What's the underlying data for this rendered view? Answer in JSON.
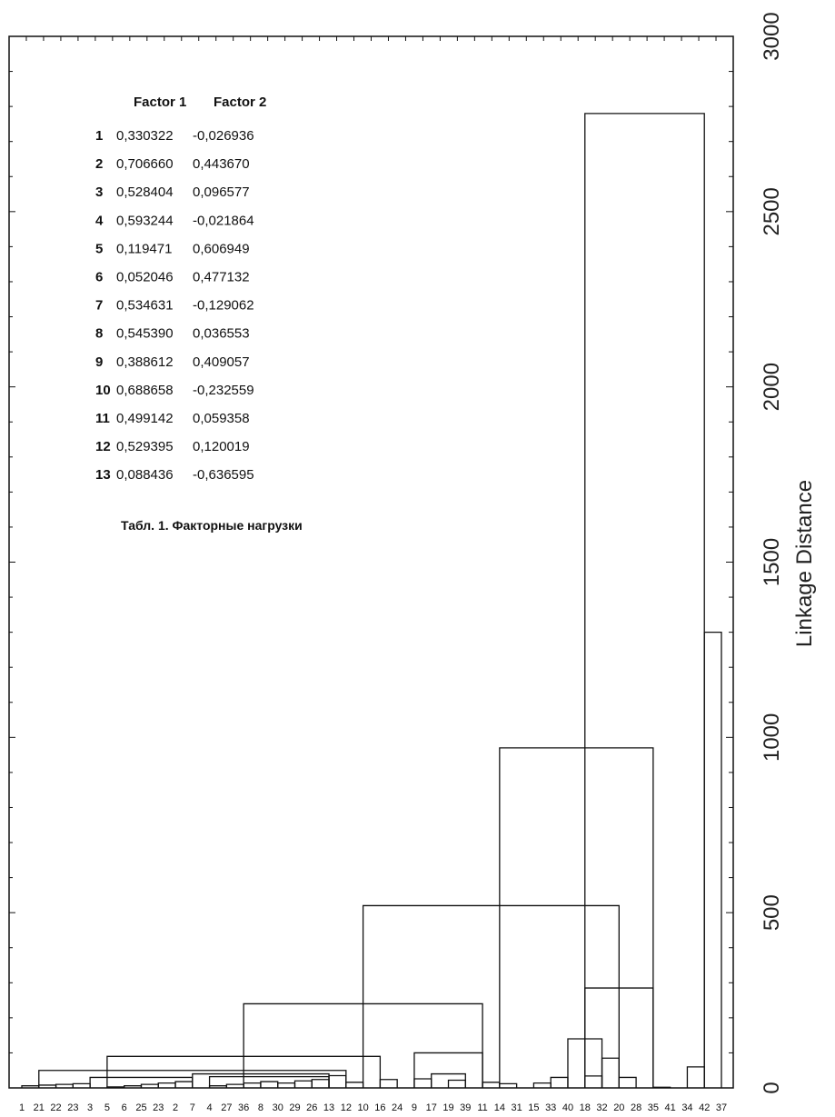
{
  "chart_data": {
    "type": "dendrogram",
    "ylabel": "Linkage Distance",
    "ylim": [
      0,
      3000
    ],
    "yticks": [
      0,
      500,
      1000,
      1500,
      2000,
      2500,
      3000
    ],
    "leaves": [
      "1",
      "21",
      "22",
      "23",
      "3",
      "5",
      "6",
      "25",
      "23",
      "2",
      "7",
      "4",
      "27",
      "36",
      "8",
      "30",
      "29",
      "26",
      "13",
      "12",
      "10",
      "16",
      "24",
      "9",
      "17",
      "19",
      "39",
      "11",
      "14",
      "31",
      "15",
      "33",
      "40",
      "18",
      "32",
      "20",
      "28",
      "35",
      "41",
      "34",
      "42",
      "37"
    ],
    "links": [
      {
        "a": 0,
        "b": 1,
        "h": 6
      },
      {
        "a": 1,
        "b": 2,
        "h": 8
      },
      {
        "a": 2,
        "b": 3,
        "h": 10
      },
      {
        "a": 3,
        "b": 4,
        "h": 12
      },
      {
        "a": 5,
        "b": 6,
        "h": 3
      },
      {
        "a": 6,
        "b": 7,
        "h": 6
      },
      {
        "a": 7,
        "b": 8,
        "h": 10
      },
      {
        "a": 8,
        "b": 9,
        "h": 14
      },
      {
        "a": 9,
        "b": 10,
        "h": 18
      },
      {
        "a": 11,
        "b": 12,
        "h": 6
      },
      {
        "a": 12,
        "b": 13,
        "h": 10
      },
      {
        "a": 13,
        "b": 14,
        "h": 14
      },
      {
        "a": 14,
        "b": 15,
        "h": 18
      },
      {
        "a": 15,
        "b": 16,
        "h": 14
      },
      {
        "a": 16,
        "b": 17,
        "h": 20
      },
      {
        "a": 17,
        "b": 18,
        "h": 24
      },
      {
        "a": 19,
        "b": 20,
        "h": 16
      },
      {
        "a": 21,
        "b": 22,
        "h": 24
      },
      {
        "a": 23,
        "b": 24,
        "h": 26
      },
      {
        "a": 25,
        "b": 26,
        "h": 22
      },
      {
        "a": 27,
        "b": 28,
        "h": 16
      },
      {
        "a": 28,
        "b": 29,
        "h": 12
      },
      {
        "a": 30,
        "b": 31,
        "h": 14
      },
      {
        "a": 31,
        "b": 32,
        "h": 30
      },
      {
        "a": 33,
        "b": 34,
        "h": 34
      },
      {
        "a": 35,
        "b": 36,
        "h": 30
      },
      {
        "a": 37,
        "b": 38,
        "h": 2
      },
      {
        "a": 39,
        "b": 40,
        "h": 60
      },
      {
        "a": 40,
        "b": 41,
        "h": 1300
      },
      {
        "a": 24,
        "b": 26,
        "h": 40
      },
      {
        "a": 23,
        "b": 27,
        "h": 100
      },
      {
        "a": 4,
        "b": 10,
        "h": 30
      },
      {
        "a": 10,
        "b": 18,
        "h": 40
      },
      {
        "a": 18,
        "b": 19,
        "h": 35
      },
      {
        "a": 1,
        "b": 19,
        "h": 50
      },
      {
        "a": 11,
        "b": 18,
        "h": 32
      },
      {
        "a": 5,
        "b": 21,
        "h": 90
      },
      {
        "a": 13,
        "b": 27,
        "h": 240
      },
      {
        "a": 34,
        "b": 35,
        "h": 85
      },
      {
        "a": 32,
        "b": 34,
        "h": 140
      },
      {
        "a": 33,
        "b": 37,
        "h": 285
      },
      {
        "a": 20,
        "b": 35,
        "h": 520
      },
      {
        "a": 28,
        "b": 37,
        "h": 970
      },
      {
        "a": 33,
        "b": 40,
        "h": 2780
      }
    ]
  },
  "table": {
    "headers": [
      "Factor 1",
      "Factor 2"
    ],
    "rows": [
      {
        "n": "1",
        "f1": "0,330322",
        "f2": "-0,026936"
      },
      {
        "n": "2",
        "f1": "0,706660",
        "f2": "0,443670"
      },
      {
        "n": "3",
        "f1": "0,528404",
        "f2": "0,096577"
      },
      {
        "n": "4",
        "f1": "0,593244",
        "f2": "-0,021864"
      },
      {
        "n": "5",
        "f1": "0,119471",
        "f2": "0,606949"
      },
      {
        "n": "6",
        "f1": "0,052046",
        "f2": "0,477132"
      },
      {
        "n": "7",
        "f1": "0,534631",
        "f2": "-0,129062"
      },
      {
        "n": "8",
        "f1": "0,545390",
        "f2": "0,036553"
      },
      {
        "n": "9",
        "f1": "0,388612",
        "f2": "0,409057"
      },
      {
        "n": "10",
        "f1": "0,688658",
        "f2": "-0,232559"
      },
      {
        "n": "11",
        "f1": "0,499142",
        "f2": "0,059358"
      },
      {
        "n": "12",
        "f1": "0,529395",
        "f2": "0,120019"
      },
      {
        "n": "13",
        "f1": "0,088436",
        "f2": "-0,636595"
      }
    ],
    "caption": "Табл. 1. Факторные нагрузки"
  }
}
